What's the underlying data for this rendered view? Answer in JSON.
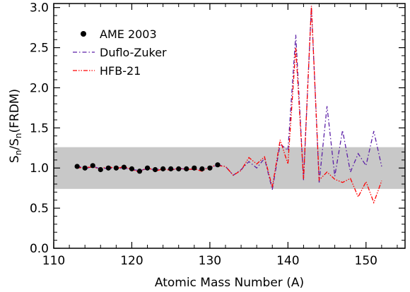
{
  "chart_data": {
    "type": "line",
    "xlabel": "Atomic Mass Number (A)",
    "ylabel_main": "S",
    "ylabel_sub1": "n",
    "ylabel_mid": "/S",
    "ylabel_sub2": "n",
    "ylabel_tail": "(FRDM)",
    "xlim": [
      110,
      155
    ],
    "ylim": [
      0.0,
      3.05
    ],
    "xticks": [
      110,
      120,
      130,
      140,
      150
    ],
    "xtick_labels": [
      "110",
      "120",
      "130",
      "140",
      "150"
    ],
    "yticks": [
      0.0,
      0.5,
      1.0,
      1.5,
      2.0,
      2.5,
      3.0
    ],
    "ytick_labels": [
      "0.0",
      "0.5",
      "1.0",
      "1.5",
      "2.0",
      "2.5",
      "3.0"
    ],
    "band": [
      0.74,
      1.26
    ],
    "band_color": "#c8c8c8",
    "legend_position": "top-left",
    "series": [
      {
        "name": "AME 2003",
        "style": "points",
        "color": "#000000",
        "x": [
          113,
          114,
          115,
          116,
          117,
          118,
          119,
          120,
          121,
          122,
          123,
          124,
          125,
          126,
          127,
          128,
          129,
          130,
          131
        ],
        "y": [
          1.02,
          1.0,
          1.03,
          0.98,
          1.0,
          1.0,
          1.01,
          0.99,
          0.96,
          1.0,
          0.98,
          0.99,
          0.99,
          0.99,
          0.99,
          1.0,
          0.99,
          1.0,
          1.04
        ]
      },
      {
        "name": "Duflo-Zuker",
        "style": "dashdot",
        "color": "#5b1fa6",
        "x": [
          113,
          114,
          115,
          116,
          117,
          118,
          119,
          120,
          121,
          122,
          123,
          124,
          125,
          126,
          127,
          128,
          129,
          130,
          131,
          132,
          133,
          134,
          135,
          136,
          137,
          138,
          139,
          140,
          141,
          142,
          143,
          144,
          145,
          146,
          147,
          148,
          149,
          150,
          151,
          152
        ],
        "y": [
          1.03,
          0.99,
          1.02,
          0.99,
          1.0,
          0.99,
          1.0,
          0.98,
          0.97,
          0.99,
          0.98,
          0.99,
          0.98,
          0.99,
          0.99,
          0.98,
          0.99,
          1.0,
          1.04,
          1.02,
          0.91,
          0.98,
          1.08,
          1.0,
          1.12,
          0.73,
          1.3,
          1.22,
          2.66,
          0.85,
          3.02,
          0.82,
          1.77,
          0.9,
          1.47,
          0.95,
          1.18,
          1.03,
          1.46,
          1.02
        ]
      },
      {
        "name": "HFB-21",
        "style": "dashdotdot",
        "color": "#ff0000",
        "x": [
          113,
          114,
          115,
          116,
          117,
          118,
          119,
          120,
          121,
          122,
          123,
          124,
          125,
          126,
          127,
          128,
          129,
          130,
          131,
          132,
          133,
          134,
          135,
          136,
          137,
          138,
          139,
          140,
          141,
          142,
          143,
          144,
          145,
          146,
          147,
          148,
          149,
          150,
          151,
          152
        ],
        "y": [
          1.0,
          1.01,
          1.01,
          0.99,
          1.02,
          0.99,
          1.02,
          0.98,
          0.95,
          1.01,
          0.96,
          0.99,
          0.97,
          1.0,
          0.98,
          0.99,
          0.96,
          1.02,
          1.03,
          1.02,
          0.91,
          0.97,
          1.13,
          1.05,
          1.14,
          0.76,
          1.35,
          1.05,
          2.5,
          0.86,
          3.02,
          0.85,
          0.95,
          0.86,
          0.82,
          0.87,
          0.64,
          0.83,
          0.57,
          0.84
        ]
      }
    ]
  }
}
